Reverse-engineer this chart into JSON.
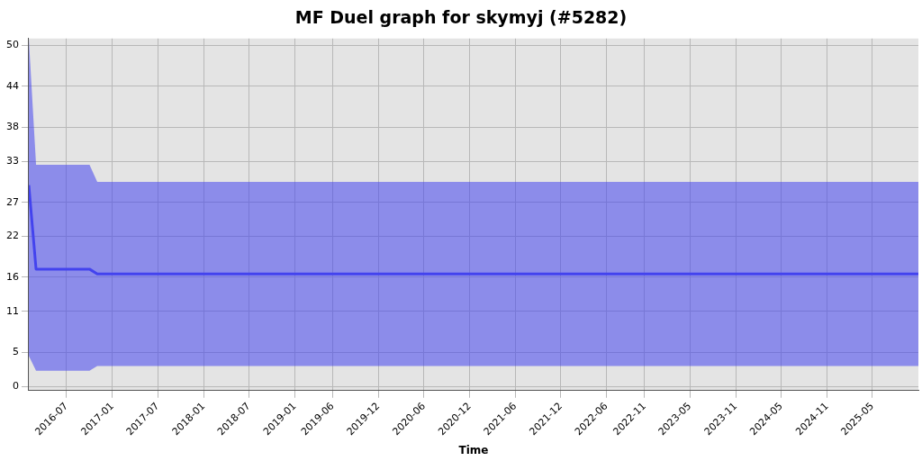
{
  "chart_data": {
    "type": "line",
    "title": "MF Duel graph for skymyj (#5282)",
    "xlabel": "Time",
    "x": [
      "2016-02-01",
      "2016-03-01",
      "2016-10-01",
      "2016-11-01",
      "2025-11-01"
    ],
    "series": [
      {
        "color": "#4444ee",
        "values": [
          29.5,
          17.2,
          17.2,
          16.5,
          16.5
        ],
        "lower": [
          4.5,
          2.3,
          2.3,
          3.0,
          3.0
        ],
        "upper": [
          51,
          32.5,
          32.5,
          30,
          30
        ]
      }
    ],
    "xlim": [
      "2016-02-01",
      "2025-11-01"
    ],
    "xticks": [
      {
        "value": "2016-07-01",
        "label": "2016-07"
      },
      {
        "value": "2017-01-01",
        "label": "2017-01"
      },
      {
        "value": "2017-07-01",
        "label": "2017-07"
      },
      {
        "value": "2018-01-01",
        "label": "2018-01"
      },
      {
        "value": "2018-07-01",
        "label": "2018-07"
      },
      {
        "value": "2019-01-01",
        "label": "2019-01"
      },
      {
        "value": "2019-06-01",
        "label": "2019-06"
      },
      {
        "value": "2019-12-01",
        "label": "2019-12"
      },
      {
        "value": "2020-06-01",
        "label": "2020-06"
      },
      {
        "value": "2020-12-01",
        "label": "2020-12"
      },
      {
        "value": "2021-06-01",
        "label": "2021-06"
      },
      {
        "value": "2021-12-01",
        "label": "2021-12"
      },
      {
        "value": "2022-06-01",
        "label": "2022-06"
      },
      {
        "value": "2022-11-01",
        "label": "2022-11"
      },
      {
        "value": "2023-05-01",
        "label": "2023-05"
      },
      {
        "value": "2023-11-01",
        "label": "2023-11"
      },
      {
        "value": "2024-05-01",
        "label": "2024-05"
      },
      {
        "value": "2024-11-01",
        "label": "2024-11"
      },
      {
        "value": "2025-05-01",
        "label": "2025-05"
      }
    ],
    "ylim": [
      -0.6,
      51
    ],
    "yticks": [
      0,
      5,
      11,
      16,
      22,
      27,
      33,
      38,
      44,
      50
    ],
    "grid": true,
    "marker": "none",
    "line_style": "solid"
  }
}
